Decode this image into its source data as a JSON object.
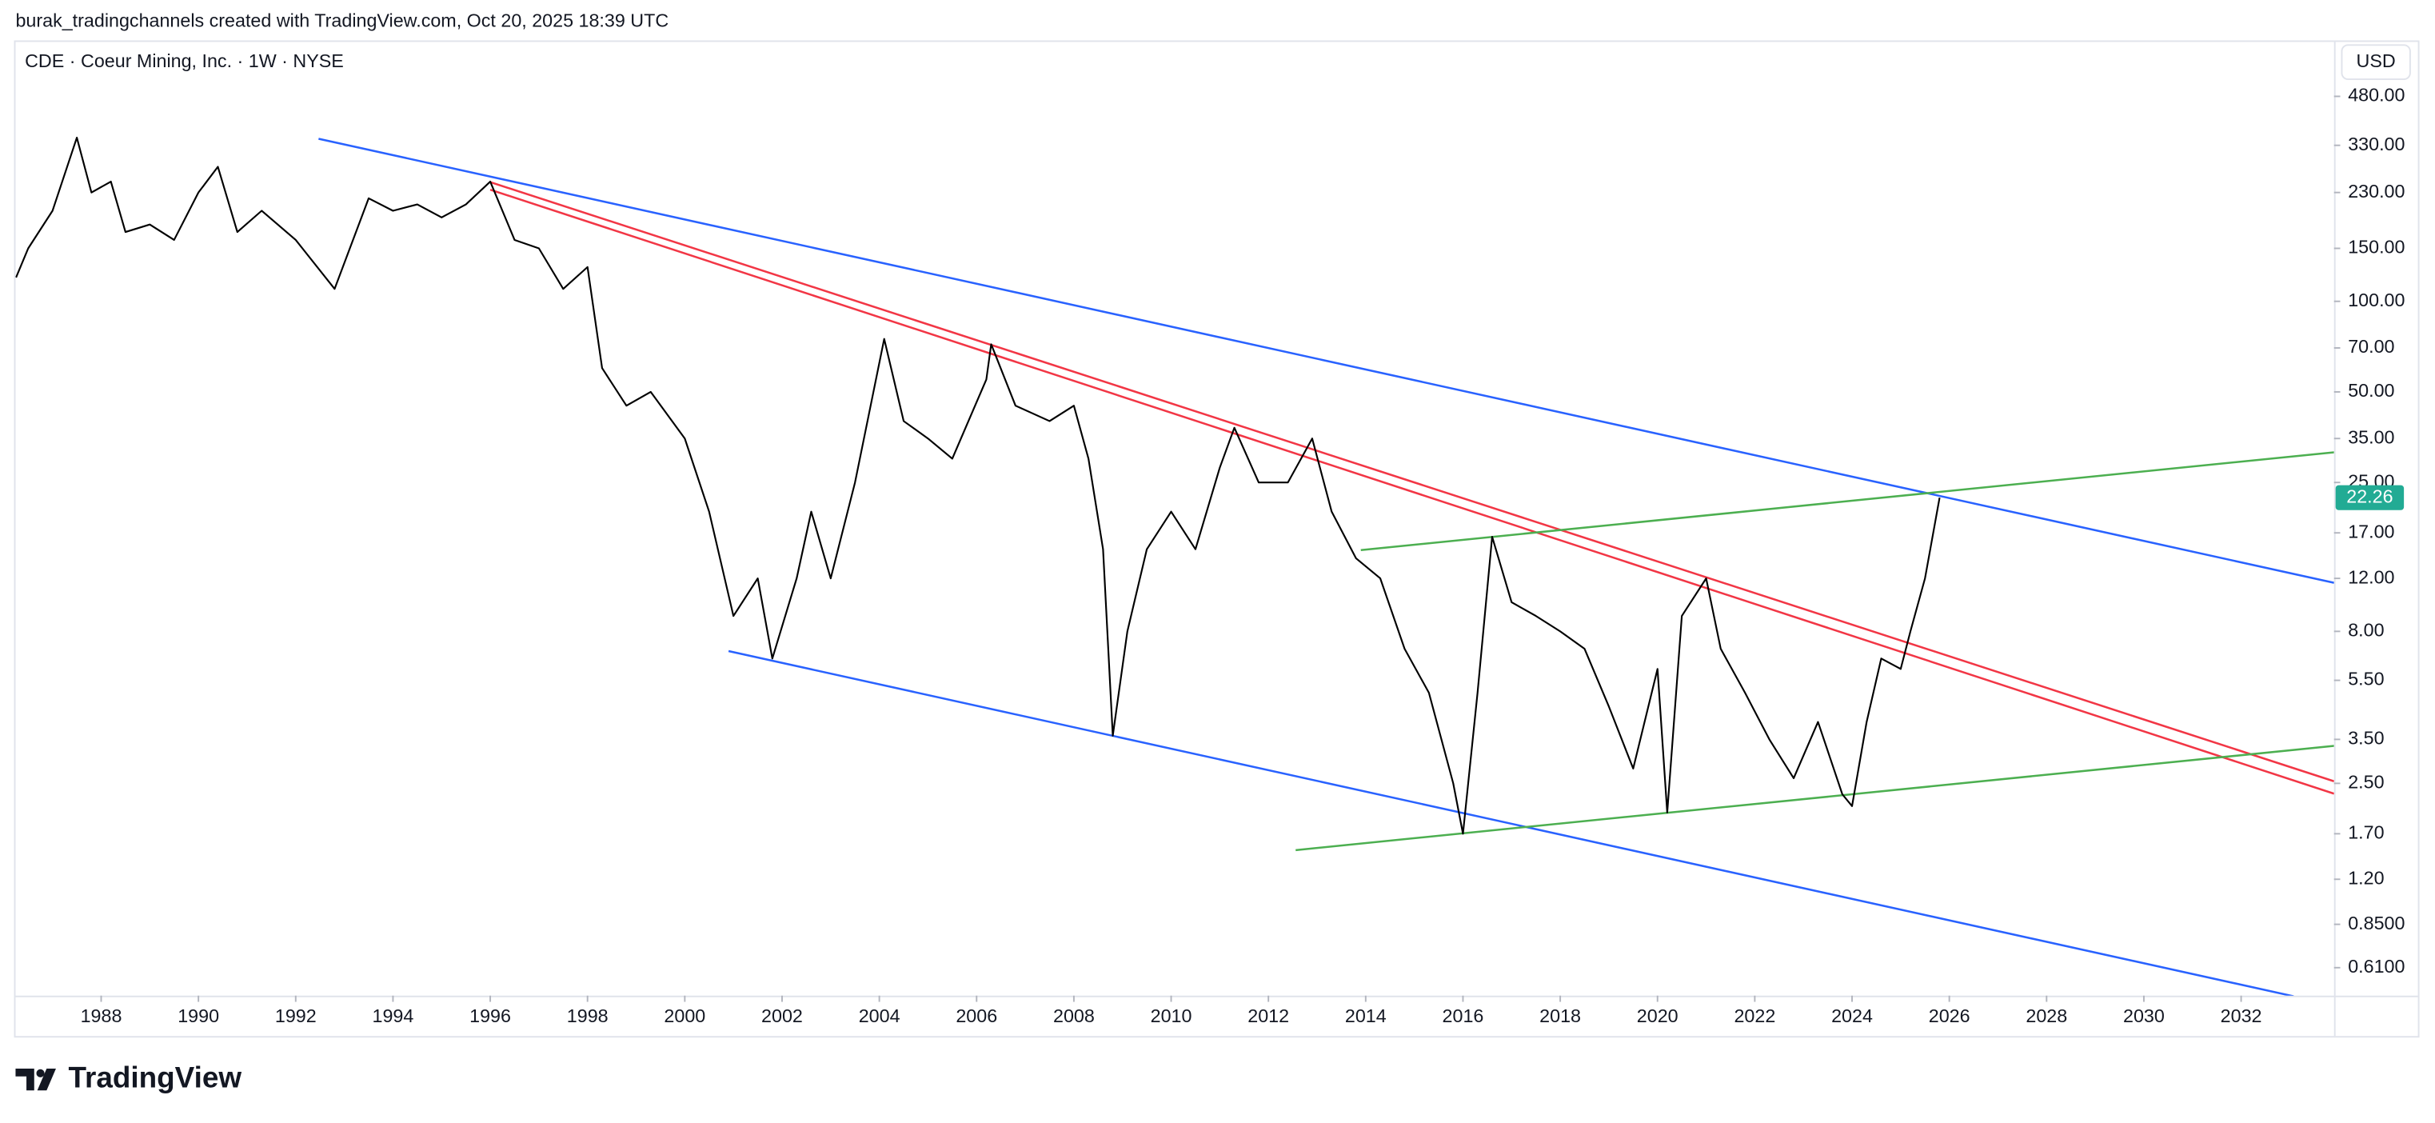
{
  "attribution": "burak_tradingchannels created with TradingView.com, Oct 20, 2025 18:39 UTC",
  "brand": "TradingView",
  "chart_data": {
    "type": "line",
    "title": "CDE · Coeur Mining, Inc. · 1W · NYSE",
    "currency": "USD",
    "log_scale": true,
    "color": "#000000",
    "x": [
      1986.25,
      1986.5,
      1987.0,
      1987.5,
      1987.8,
      1988.2,
      1988.5,
      1989.0,
      1989.5,
      1990.0,
      1990.4,
      1990.8,
      1991.3,
      1992.0,
      1992.8,
      1993.5,
      1994.0,
      1994.5,
      1995.0,
      1995.5,
      1996.0,
      1996.5,
      1997.0,
      1997.5,
      1998.0,
      1998.3,
      1998.8,
      1999.3,
      2000.0,
      2000.5,
      2001.0,
      2001.5,
      2001.8,
      2002.3,
      2002.6,
      2003.0,
      2003.5,
      2004.1,
      2004.5,
      2005.0,
      2005.5,
      2006.2,
      2006.3,
      2006.8,
      2007.5,
      2008.0,
      2008.3,
      2008.6,
      2008.8,
      2009.1,
      2009.5,
      2010.0,
      2010.5,
      2011.0,
      2011.3,
      2011.8,
      2012.4,
      2012.9,
      2013.3,
      2013.8,
      2014.3,
      2014.8,
      2015.3,
      2015.8,
      2016.0,
      2016.3,
      2016.6,
      2017.0,
      2017.5,
      2018.0,
      2018.5,
      2019.0,
      2019.5,
      2020.0,
      2020.2,
      2020.5,
      2021.0,
      2021.3,
      2021.8,
      2022.3,
      2022.8,
      2023.3,
      2023.8,
      2024.0,
      2024.3,
      2024.6,
      2025.0,
      2025.2,
      2025.5,
      2025.8
    ],
    "values": [
      120,
      150,
      200,
      350,
      230,
      250,
      170,
      180,
      160,
      230,
      280,
      170,
      200,
      160,
      110,
      220,
      200,
      210,
      190,
      210,
      250,
      160,
      150,
      110,
      130,
      60,
      45,
      50,
      35,
      20,
      9,
      12,
      6.5,
      12,
      20,
      12,
      25,
      75,
      40,
      35,
      30,
      55,
      72,
      45,
      40,
      45,
      30,
      15,
      3.6,
      8,
      15,
      20,
      15,
      28,
      38,
      25,
      25,
      35,
      20,
      14,
      12,
      7,
      5,
      2.5,
      1.7,
      5,
      16.5,
      10,
      9,
      8,
      7,
      4.5,
      2.8,
      6,
      2.0,
      9,
      12,
      7,
      5,
      3.5,
      2.6,
      4,
      2.3,
      2.1,
      4,
      6.5,
      6,
      8,
      12,
      22.26
    ],
    "last_price": 22.26,
    "last_price_color": "#22ab94",
    "trendlines": [
      {
        "color": "#2962ff",
        "x": [
          1992.47,
          2033.91
        ],
        "values": [
          347,
          11.6
        ]
      },
      {
        "color": "#2962ff",
        "x": [
          2000.9,
          2033.08
        ],
        "values": [
          6.88,
          0.49
        ]
      },
      {
        "color": "#f23645",
        "x": [
          1996.0,
          2033.91
        ],
        "values": [
          249,
          2.54
        ]
      },
      {
        "color": "#f23645",
        "x": [
          1996.0,
          2033.91
        ],
        "values": [
          235,
          2.31
        ]
      },
      {
        "color": "#4caf50",
        "x": [
          2013.9,
          2033.91
        ],
        "values": [
          14.9,
          31.5
        ]
      },
      {
        "color": "#4caf50",
        "x": [
          2012.56,
          2033.91
        ],
        "values": [
          1.5,
          3.33
        ]
      }
    ],
    "xlim": [
      1986.24,
      2033.91
    ],
    "ylim": [
      0.4925,
      728
    ],
    "xticks": [
      1988,
      1990,
      1992,
      1994,
      1996,
      1998,
      2000,
      2002,
      2004,
      2006,
      2008,
      2010,
      2012,
      2014,
      2016,
      2018,
      2020,
      2022,
      2024,
      2026,
      2028,
      2030,
      2032
    ],
    "yticks": [
      {
        "value": 480,
        "label": "480.00"
      },
      {
        "value": 330,
        "label": "330.00"
      },
      {
        "value": 230,
        "label": "230.00"
      },
      {
        "value": 150,
        "label": "150.00"
      },
      {
        "value": 100,
        "label": "100.00"
      },
      {
        "value": 70,
        "label": "70.00"
      },
      {
        "value": 50,
        "label": "50.00"
      },
      {
        "value": 35,
        "label": "35.00"
      },
      {
        "value": 25,
        "label": "25.00"
      },
      {
        "value": 17,
        "label": "17.00"
      },
      {
        "value": 12,
        "label": "12.00"
      },
      {
        "value": 8,
        "label": "8.00"
      },
      {
        "value": 5.5,
        "label": "5.50"
      },
      {
        "value": 3.5,
        "label": "3.50"
      },
      {
        "value": 2.5,
        "label": "2.50"
      },
      {
        "value": 1.7,
        "label": "1.70"
      },
      {
        "value": 1.2,
        "label": "1.20"
      },
      {
        "value": 0.85,
        "label": "0.8500"
      },
      {
        "value": 0.61,
        "label": "0.6100"
      }
    ]
  }
}
